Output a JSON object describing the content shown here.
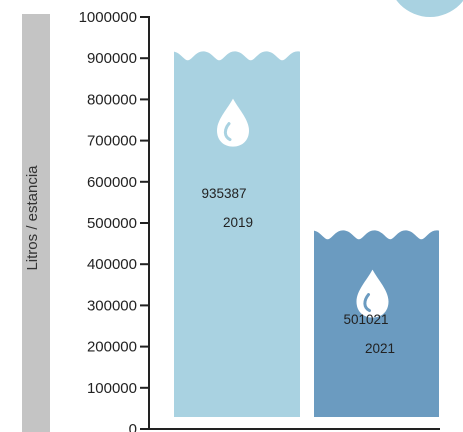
{
  "chart_data": {
    "type": "bar",
    "ylabel": "Litros / estancia",
    "xlabel": "",
    "ylim": [
      0,
      1000000
    ],
    "y_ticks": [
      0,
      100000,
      200000,
      300000,
      400000,
      500000,
      600000,
      700000,
      800000,
      900000,
      1000000
    ],
    "categories": [
      "2019",
      "2021"
    ],
    "values": [
      935387,
      501021
    ],
    "value_labels": [
      "935387",
      "501021"
    ],
    "bar_colors": [
      "#a9d2e1",
      "#6b9bc0"
    ],
    "grid": false,
    "legend": "none"
  },
  "icons": {
    "bar_marker": "water-drop-icon",
    "corner": "decorative-circle"
  },
  "colors": {
    "ylabel_band": "#c4c4c4",
    "axis": "#222222",
    "corner_circle": "#a9d2e1"
  }
}
